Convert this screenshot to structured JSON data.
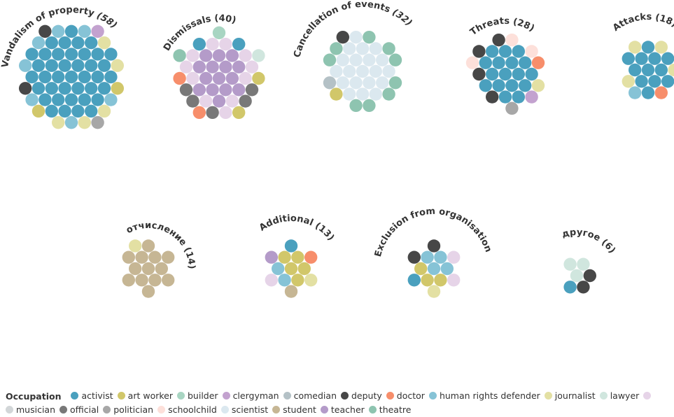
{
  "chart_data": {
    "type": "packed-circles",
    "legend_title": "Occupation",
    "legend": [
      {
        "name": "activist",
        "color": "#4aa0be"
      },
      {
        "name": "art worker",
        "color": "#d1c76a"
      },
      {
        "name": "builder",
        "color": "#a8d5c2"
      },
      {
        "name": "clergyman",
        "color": "#c3a2cf"
      },
      {
        "name": "comedian",
        "color": "#b4c1c6"
      },
      {
        "name": "deputy",
        "color": "#474747"
      },
      {
        "name": "doctor",
        "color": "#f78e6b"
      },
      {
        "name": "human rights defender",
        "color": "#86c3d6"
      },
      {
        "name": "journalist",
        "color": "#e3e0a3"
      },
      {
        "name": "lawyer",
        "color": "#d0e6de"
      },
      {
        "name": "",
        "color": "#e6d4e8"
      },
      {
        "name": "musician",
        "color": "#d2d6d8"
      },
      {
        "name": "official",
        "color": "#787878"
      },
      {
        "name": "politician",
        "color": "#a7a7a7"
      },
      {
        "name": "schoolchild",
        "color": "#fde0da"
      },
      {
        "name": "scientist",
        "color": "#dbe8ef"
      },
      {
        "name": "student",
        "color": "#c6b694"
      },
      {
        "name": "teacher",
        "color": "#b49bc9"
      },
      {
        "name": "theatre",
        "color": "#8ec4b0"
      }
    ],
    "groups": [
      {
        "label": "Vandalism of property",
        "count": "58",
        "italic_count": true,
        "counts": {
          "activist": 40,
          "art worker": 2,
          "clergyman": 1,
          "deputy": 2,
          "human rights defender": 7,
          "journalist": 5,
          "politician": 1
        }
      },
      {
        "label": "Dismissals",
        "count": "40",
        "italic_count": false,
        "counts": {
          "activist": 2,
          "art worker": 2,
          "builder": 1,
          "doctor": 2,
          "official": 5,
          "teacher": 15,
          "": 11,
          "theatre": 1,
          "lawyer": 1
        }
      },
      {
        "label": "Cancellation of events",
        "count": "32",
        "italic_count": true,
        "counts": {
          "art worker": 1,
          "comedian": 1,
          "deputy": 1,
          "scientist": 20,
          "theatre": 9
        }
      },
      {
        "label": "Threats",
        "count": "28",
        "italic_count": false,
        "counts": {
          "activist": 17,
          "deputy": 4,
          "doctor": 1,
          "politician": 1,
          "schoolchild": 3,
          "clergyman": 1,
          "journalist": 1
        }
      },
      {
        "label": "Attacks",
        "count": "18",
        "italic_count": false,
        "counts": {
          "activist": 12,
          "doctor": 1,
          "human rights defender": 1,
          "journalist": 4
        }
      },
      {
        "label": "отчисление",
        "count": "14",
        "italic_count": false,
        "counts": {
          "student": 13,
          "journalist": 1
        }
      },
      {
        "label": "Additional",
        "count": "13",
        "italic_count": false,
        "counts": {
          "teacher": 1,
          "art worker": 5,
          "activist": 1,
          "doctor": 1,
          "human rights defender": 2,
          "journalist": 1,
          "student": 1,
          "": 1
        }
      },
      {
        "label": "Exclusion from organisation",
        "count": "13",
        "italic_count": true,
        "counts": {
          "deputy": 2,
          "human rights defender": 4,
          "art worker": 3,
          "": 2,
          "journalist": 1,
          "activist": 1
        }
      },
      {
        "label": "другое",
        "count": "6",
        "italic_count": false,
        "counts": {
          "lawyer": 3,
          "activist": 1,
          "deputy": 2
        }
      }
    ]
  }
}
